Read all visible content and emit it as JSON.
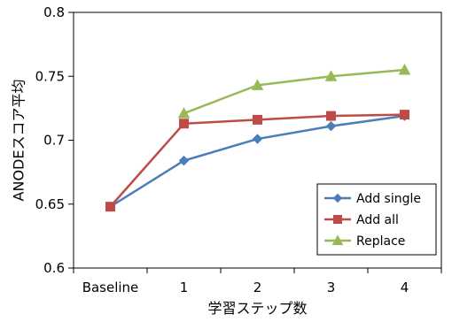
{
  "chart_data": {
    "type": "line",
    "title": "",
    "xlabel": "学習ステップ数",
    "ylabel": "ANODEスコア平均",
    "categories": [
      "Baseline",
      "1",
      "2",
      "3",
      "4"
    ],
    "ylim": [
      0.6,
      0.8
    ],
    "yticks": [
      "0.6",
      "0.65",
      "0.7",
      "0.75",
      "0.8"
    ],
    "grid": false,
    "legend_position": "bottom-right",
    "series": [
      {
        "name": "Add single",
        "color": "#4a7ebb",
        "marker": "diamond",
        "values": [
          0.648,
          0.684,
          0.701,
          0.711,
          0.719
        ]
      },
      {
        "name": "Add all",
        "color": "#be4b48",
        "marker": "square",
        "values": [
          0.648,
          0.713,
          0.716,
          0.719,
          0.72
        ]
      },
      {
        "name": "Replace",
        "color": "#98b954",
        "marker": "triangle",
        "values": [
          null,
          0.721,
          0.743,
          0.75,
          0.755
        ]
      }
    ]
  }
}
